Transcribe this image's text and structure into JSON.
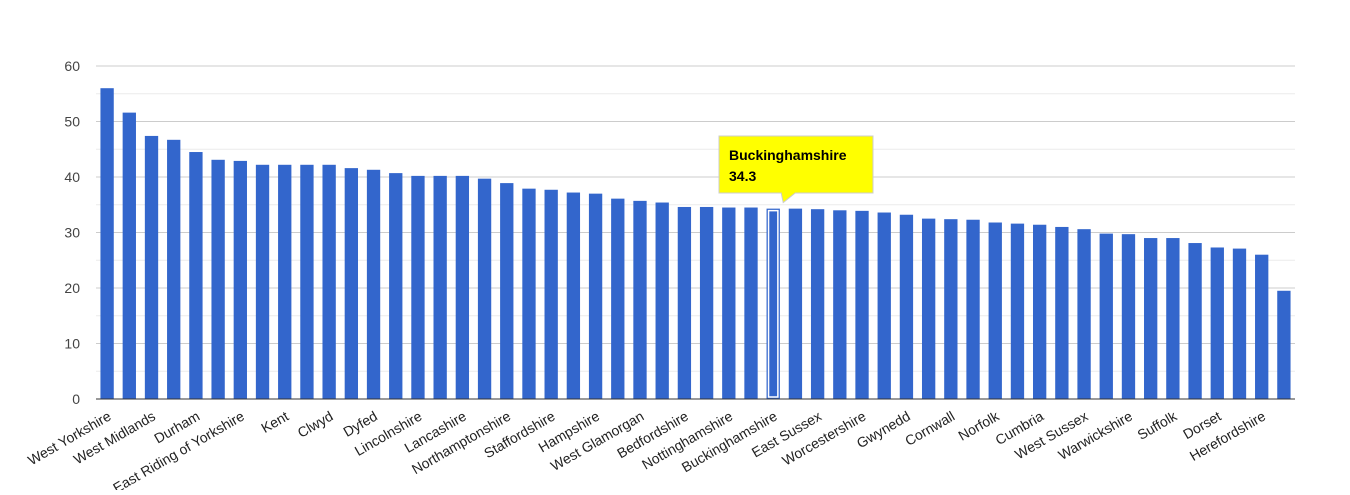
{
  "chart_data": {
    "type": "bar",
    "title": "",
    "xlabel": "",
    "ylabel": "",
    "ylim": [
      0,
      60
    ],
    "yticks": [
      0,
      10,
      20,
      30,
      40,
      50,
      60
    ],
    "grid": true,
    "bar_color": "#3366cc",
    "highlight_color": "#ffff00",
    "categories": [
      "West Yorkshire",
      "",
      "West Midlands",
      "",
      "Durham",
      "",
      "East Riding of Yorkshire",
      "",
      "Kent",
      "",
      "Clwyd",
      "",
      "Dyfed",
      "",
      "Lincolnshire",
      "",
      "Lancashire",
      "",
      "Northamptonshire",
      "",
      "Staffordshire",
      "",
      "Hampshire",
      "",
      "West Glamorgan",
      "",
      "Bedfordshire",
      "",
      "Nottinghamshire",
      "",
      "Buckinghamshire",
      "",
      "East Sussex",
      "",
      "Worcestershire",
      "",
      "Gwynedd",
      "",
      "Cornwall",
      "",
      "Norfolk",
      "",
      "Cumbria",
      "",
      "West Sussex",
      "",
      "Warwickshire",
      "",
      "Suffolk",
      "",
      "Dorset",
      "",
      "Herefordshire",
      ""
    ],
    "values": [
      56.0,
      51.6,
      47.4,
      46.7,
      44.5,
      43.1,
      42.9,
      42.2,
      42.2,
      42.2,
      42.2,
      41.6,
      41.3,
      40.7,
      40.2,
      40.2,
      40.2,
      39.7,
      38.9,
      37.9,
      37.7,
      37.2,
      37.0,
      36.1,
      35.7,
      35.4,
      34.6,
      34.6,
      34.5,
      34.5,
      34.3,
      34.3,
      34.2,
      34.0,
      33.9,
      33.6,
      33.2,
      32.5,
      32.4,
      32.3,
      31.8,
      31.6,
      31.4,
      31.0,
      30.6,
      29.8,
      29.7,
      29.0,
      29.0,
      28.1,
      27.3,
      27.1,
      26.0,
      19.5
    ],
    "highlight_index": 30,
    "tooltip": {
      "name": "Buckinghamshire",
      "value": "34.3"
    }
  }
}
